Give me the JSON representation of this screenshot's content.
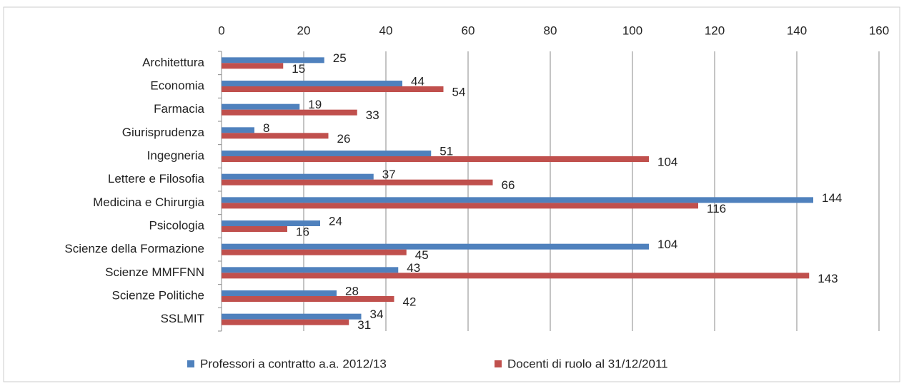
{
  "chart_data": {
    "type": "bar",
    "orientation": "horizontal",
    "categories": [
      "Architettura",
      "Economia",
      "Farmacia",
      "Giurisprudenza",
      "Ingegneria",
      "Lettere e Filosofia",
      "Medicina e Chirurgia",
      "Psicologia",
      "Scienze della Formazione",
      "Scienze MMFFNN",
      "Scienze Politiche",
      "SSLMIT"
    ],
    "series": [
      {
        "name": "Professori a contratto a.a. 2012/13",
        "color": "#4f81bd",
        "values": [
          25,
          44,
          19,
          8,
          51,
          37,
          144,
          24,
          104,
          43,
          28,
          34
        ]
      },
      {
        "name": "Docenti di ruolo al 31/12/2011",
        "color": "#c0504d",
        "values": [
          15,
          54,
          33,
          26,
          104,
          66,
          116,
          16,
          45,
          143,
          42,
          31
        ]
      }
    ],
    "xlim": [
      0,
      160
    ],
    "xticks": [
      0,
      20,
      40,
      60,
      80,
      100,
      120,
      140,
      160
    ],
    "grid": true,
    "legend": "bottom"
  }
}
